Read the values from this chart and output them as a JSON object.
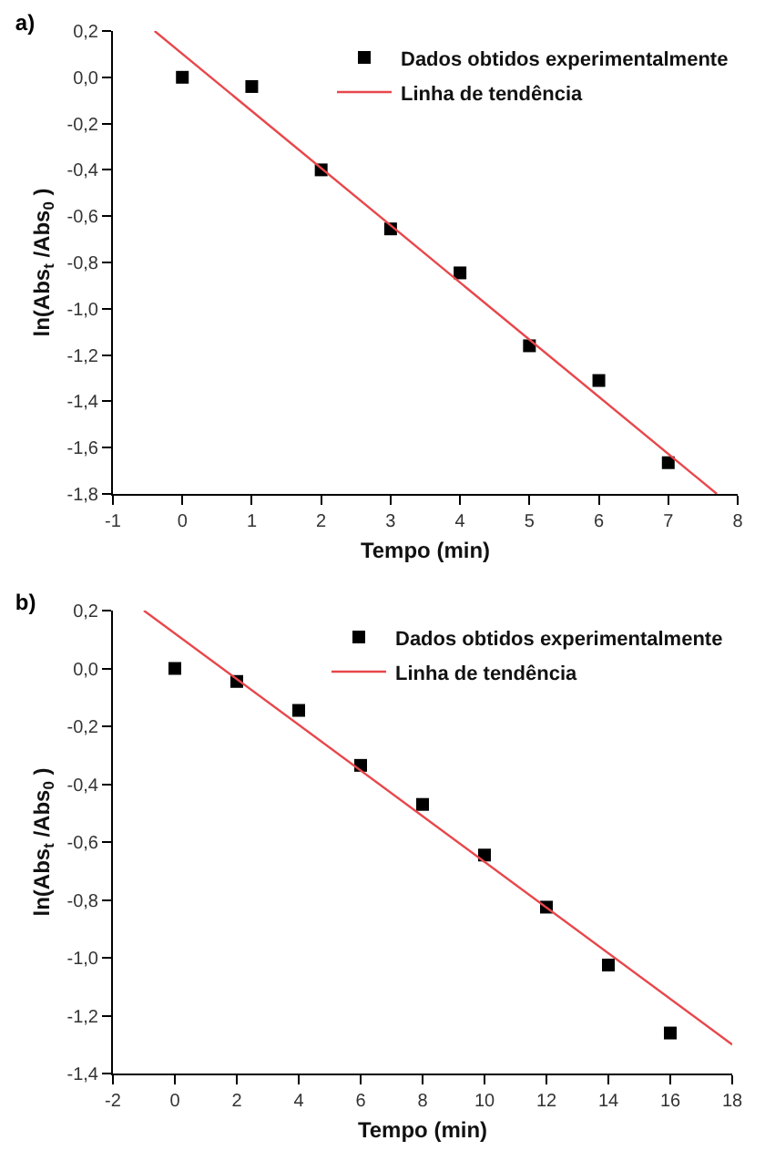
{
  "chart_data": [
    {
      "type": "scatter",
      "title": "a)",
      "xlabel": "Tempo (min)",
      "ylabel": "ln(Abs$_{t}$ /Abs$_{0}$ )",
      "xlim": [
        -1,
        8
      ],
      "xticks": [
        -1,
        0,
        1,
        2,
        3,
        4,
        5,
        6,
        7,
        8
      ],
      "ylim": [
        -1.8,
        0.2
      ],
      "yticks": [
        {
          "value": -1.8,
          "label": "-1,8"
        },
        {
          "value": -1.6,
          "label": "-1,6"
        },
        {
          "value": -1.4,
          "label": "-1,4"
        },
        {
          "value": -1.2,
          "label": "-1,2"
        },
        {
          "value": -1.0,
          "label": "-1,0"
        },
        {
          "value": -0.8,
          "label": "-0,8"
        },
        {
          "value": -0.6,
          "label": "-0,6"
        },
        {
          "value": -0.4,
          "label": "-0,4"
        },
        {
          "value": -0.2,
          "label": "-0,2"
        },
        {
          "value": 0,
          "label": "0,0"
        },
        {
          "value": 0.2,
          "label": "0,2"
        }
      ],
      "grid": false,
      "legend": "top right",
      "series": [
        {
          "type": "scatter",
          "name": "Dados obtidos experimentalmente",
          "color": "#000000",
          "marker": "square",
          "x": [
            0,
            1,
            2,
            3,
            4,
            5,
            6,
            7
          ],
          "values": [
            0,
            -0.04,
            -0.4,
            -0.655,
            -0.845,
            -1.16,
            -1.31,
            -1.665
          ]
        },
        {
          "type": "line",
          "name": "Linha de tendência",
          "color": "#e8474b",
          "line_style": "solid",
          "x": [
            -0.4,
            7.7
          ],
          "values": [
            0.2,
            -1.8
          ]
        }
      ]
    },
    {
      "type": "scatter",
      "title": "b)",
      "xlabel": "Tempo (min)",
      "ylabel": "ln(Abs$_{t}$ /Abs$_{0}$ )",
      "xlim": [
        -2,
        18
      ],
      "xticks": [
        -2,
        0,
        2,
        4,
        6,
        8,
        10,
        12,
        14,
        16,
        18
      ],
      "ylim": [
        -1.4,
        0.2
      ],
      "yticks": [
        {
          "value": -1.4,
          "label": "-1,4"
        },
        {
          "value": -1.2,
          "label": "-1,2"
        },
        {
          "value": -1.0,
          "label": "-1,0"
        },
        {
          "value": -0.8,
          "label": "-0,8"
        },
        {
          "value": -0.6,
          "label": "-0,6"
        },
        {
          "value": -0.4,
          "label": "-0,4"
        },
        {
          "value": -0.2,
          "label": "-0,2"
        },
        {
          "value": 0,
          "label": "0,0"
        },
        {
          "value": 0.2,
          "label": "0,2"
        }
      ],
      "grid": false,
      "legend": "top right",
      "series": [
        {
          "type": "scatter",
          "name": "Dados obtidos experimentalmente",
          "color": "#000000",
          "marker": "square",
          "x": [
            0,
            2,
            4,
            6,
            8,
            10,
            12,
            14,
            16
          ],
          "values": [
            0,
            -0.045,
            -0.145,
            -0.335,
            -0.47,
            -0.645,
            -0.825,
            -1.025,
            -1.26
          ]
        },
        {
          "type": "line",
          "name": "Linha de tendência",
          "color": "#e8474b",
          "line_style": "solid",
          "x": [
            -1,
            18
          ],
          "values": [
            0.2,
            -1.3
          ]
        }
      ]
    }
  ]
}
